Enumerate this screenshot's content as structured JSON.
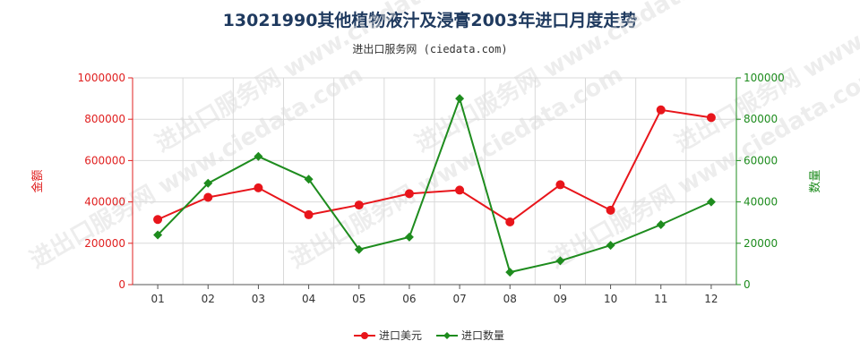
{
  "title": "13021990其他植物液汁及浸膏2003年进口月度走势",
  "subtitle": "进出口服务网 (ciedata.com)",
  "watermark": "进出口服务网 www.ciedata.com",
  "chart_data": {
    "type": "line",
    "categories": [
      "01",
      "02",
      "03",
      "04",
      "05",
      "06",
      "07",
      "08",
      "09",
      "10",
      "11",
      "12"
    ],
    "y_left": {
      "label": "金额",
      "ylim": [
        0,
        1000000
      ],
      "ticks": [
        "0",
        "200000",
        "400000",
        "600000",
        "800000",
        "1000000"
      ]
    },
    "y_right": {
      "label": "数量",
      "ylim": [
        0,
        100000
      ],
      "ticks": [
        "0",
        "20000",
        "40000",
        "60000",
        "80000",
        "100000"
      ]
    },
    "series": [
      {
        "name": "进口美元",
        "axis": "left",
        "color": "#e8151b",
        "marker": "circle",
        "values": [
          315000,
          422000,
          468000,
          338000,
          385000,
          440000,
          457000,
          303000,
          483000,
          360000,
          845000,
          808000
        ]
      },
      {
        "name": "进口数量",
        "axis": "right",
        "color": "#1e8c1e",
        "marker": "diamond",
        "values": [
          24000,
          49000,
          62000,
          51000,
          17000,
          23000,
          90000,
          6000,
          11500,
          19000,
          29000,
          40000
        ]
      }
    ],
    "grid": true,
    "legend_position": "bottom-center"
  }
}
